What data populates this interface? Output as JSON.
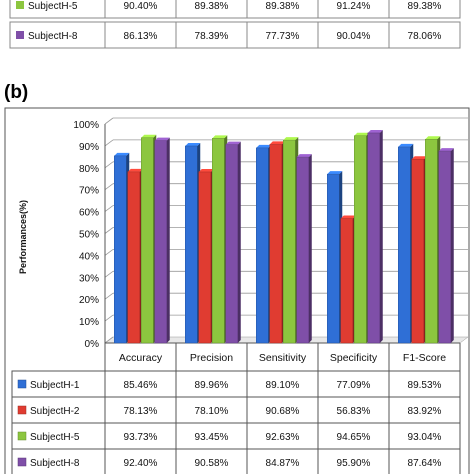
{
  "panel_label": "(b)",
  "top_table": {
    "rows": [
      {
        "series": "SubjectH-5",
        "color": "#8cc63f",
        "values": [
          "90.40%",
          "89.38%",
          "89.38%",
          "91.24%",
          "89.38%"
        ]
      },
      {
        "series": "SubjectH-8",
        "color": "#7f4fa8",
        "values": [
          "86.13%",
          "78.39%",
          "77.73%",
          "90.04%",
          "78.06%"
        ]
      }
    ]
  },
  "chart_data": {
    "type": "bar",
    "ylabel": "Performances(%)",
    "ylim": [
      0,
      100
    ],
    "yticks": [
      "0%",
      "10%",
      "20%",
      "30%",
      "40%",
      "50%",
      "60%",
      "70%",
      "80%",
      "90%",
      "100%"
    ],
    "grid": true,
    "categories": [
      "Accuracy",
      "Precision",
      "Sensitivity",
      "Specificity",
      "F1-Score"
    ],
    "series": [
      {
        "name": "SubjectH-1",
        "color": "#2f6fd6",
        "values": [
          85.46,
          89.96,
          89.1,
          77.09,
          89.53
        ],
        "labels": [
          "85.46%",
          "89.96%",
          "89.10%",
          "77.09%",
          "89.53%"
        ]
      },
      {
        "name": "SubjectH-2",
        "color": "#e03c31",
        "values": [
          78.13,
          78.1,
          90.68,
          56.83,
          83.92
        ],
        "labels": [
          "78.13%",
          "78.10%",
          "90.68%",
          "56.83%",
          "83.92%"
        ]
      },
      {
        "name": "SubjectH-5",
        "color": "#8cc63f",
        "values": [
          93.73,
          93.45,
          92.63,
          94.65,
          93.04
        ],
        "labels": [
          "93.73%",
          "93.45%",
          "92.63%",
          "94.65%",
          "93.04%"
        ]
      },
      {
        "name": "SubjectH-8",
        "color": "#7f4fa8",
        "values": [
          92.4,
          90.58,
          84.87,
          95.9,
          87.64
        ],
        "labels": [
          "92.40%",
          "90.58%",
          "84.87%",
          "95.90%",
          "87.64%"
        ]
      }
    ]
  }
}
